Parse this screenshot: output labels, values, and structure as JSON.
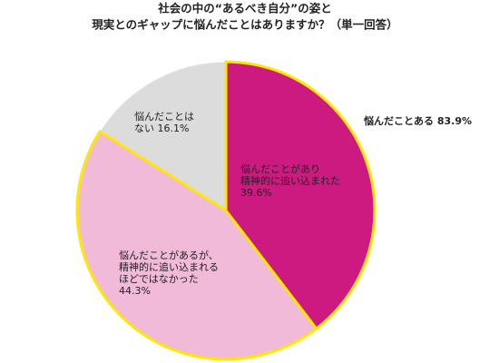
{
  "chart_data": {
    "type": "pie",
    "title": [
      "社会の中の“あるべき自分”の姿と",
      "現実とのギャップに悩んだことはありますか？（単一回答）"
    ],
    "labels": [
      [
        "悩んだことがあり",
        "精神的に追い込まれた"
      ],
      [
        "悩んだことがあるが、",
        "精神的に追い込まれる",
        "ほどではなかった"
      ],
      [
        "悩んだことは",
        "ない"
      ]
    ],
    "values": [
      39.6,
      44.3,
      16.1
    ],
    "value_labels": [
      "39.6%",
      "44.3%",
      "16.1%"
    ],
    "colors": [
      "#cc1a80",
      "#f0bad8",
      "#dcdcdc"
    ],
    "outline_color": "#ffe800",
    "outlined": [
      true,
      true,
      false
    ],
    "annotation": "悩んだことある 83.9%",
    "annotation_color": "#cc1a80"
  }
}
